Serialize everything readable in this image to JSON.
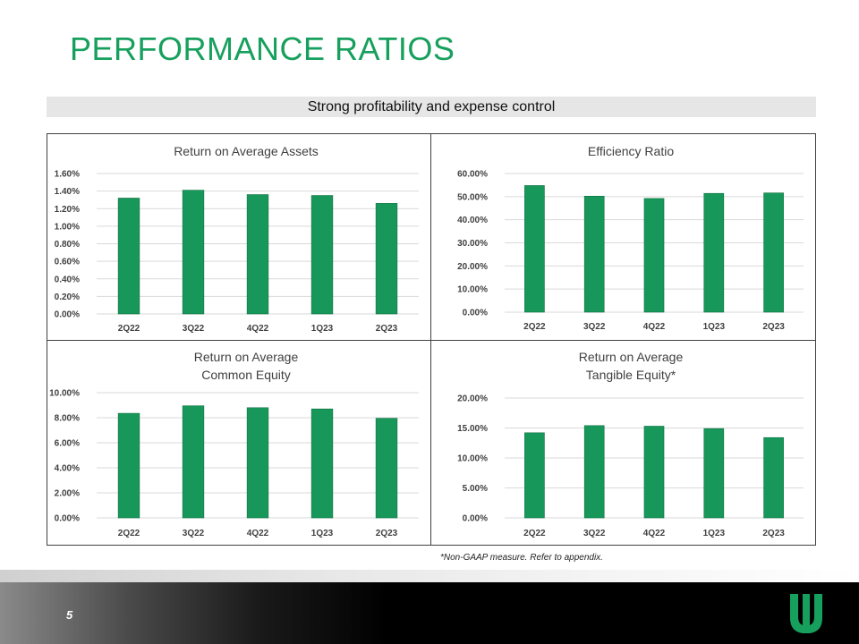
{
  "page": {
    "title": "PERFORMANCE RATIOS",
    "subtitle": "Strong profitability and expense control",
    "footnote": "*Non-GAAP measure.  Refer to appendix.",
    "page_number": "5",
    "logo": "company-logo-icon",
    "accent_color": "#17a05d",
    "bar_color": "#17985a"
  },
  "chart_data": [
    {
      "type": "bar",
      "title": [
        "Return on Average Assets"
      ],
      "categories": [
        "2Q22",
        "3Q22",
        "4Q22",
        "1Q23",
        "2Q23"
      ],
      "values": [
        1.32,
        1.41,
        1.36,
        1.35,
        1.26
      ],
      "ylim": [
        0,
        1.6
      ],
      "yticks": [
        "0.00%",
        "0.20%",
        "0.40%",
        "0.60%",
        "0.80%",
        "1.00%",
        "1.20%",
        "1.40%",
        "1.60%"
      ],
      "grid": true
    },
    {
      "type": "bar",
      "title": [
        "Efficiency Ratio"
      ],
      "categories": [
        "2Q22",
        "3Q22",
        "4Q22",
        "1Q23",
        "2Q23"
      ],
      "values": [
        54.8,
        50.2,
        49.2,
        51.4,
        51.6
      ],
      "ylim": [
        0,
        60
      ],
      "yticks": [
        "0.00%",
        "10.00%",
        "20.00%",
        "30.00%",
        "40.00%",
        "50.00%",
        "60.00%"
      ],
      "grid": true
    },
    {
      "type": "bar",
      "title": [
        "Return on Average",
        "Common Equity"
      ],
      "categories": [
        "2Q22",
        "3Q22",
        "4Q22",
        "1Q23",
        "2Q23"
      ],
      "values": [
        8.35,
        8.95,
        8.8,
        8.7,
        7.95
      ],
      "ylim": [
        0,
        10
      ],
      "yticks": [
        "0.00%",
        "2.00%",
        "4.00%",
        "6.00%",
        "8.00%",
        "10.00%"
      ],
      "grid": true
    },
    {
      "type": "bar",
      "title": [
        "Return on Average",
        "Tangible Equity*"
      ],
      "categories": [
        "2Q22",
        "3Q22",
        "4Q22",
        "1Q23",
        "2Q23"
      ],
      "values": [
        14.2,
        15.4,
        15.3,
        14.9,
        13.4
      ],
      "ylim": [
        0,
        20
      ],
      "yticks": [
        "0.00%",
        "5.00%",
        "10.00%",
        "15.00%",
        "20.00%"
      ],
      "grid": true
    }
  ]
}
